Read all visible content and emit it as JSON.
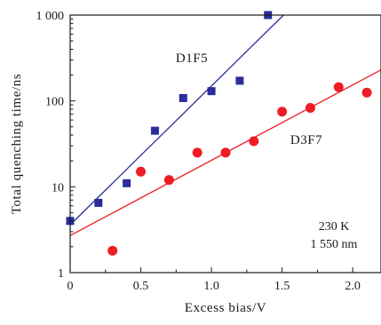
{
  "chart_data": {
    "type": "scatter",
    "title": "",
    "xlabel": "Excess bias/V",
    "ylabel": "Total quenching time/ns",
    "xlim": [
      0,
      2.2
    ],
    "ylim": [
      1,
      1000
    ],
    "y_scale": "log",
    "x_ticks": [
      0,
      0.5,
      1.0,
      1.5,
      2.0
    ],
    "x_tick_labels": [
      "0",
      "0.5",
      "1.0",
      "1.5",
      "2.0"
    ],
    "y_ticks": [
      1,
      10,
      100,
      1000
    ],
    "y_tick_labels": [
      "1",
      "10",
      "100",
      "1 000"
    ],
    "grid": false,
    "legend": "none",
    "series": [
      {
        "name": "D1F5",
        "marker": "square",
        "color": "#2b2d9b",
        "points": [
          {
            "x": 0.0,
            "y": 4.0
          },
          {
            "x": 0.2,
            "y": 6.5
          },
          {
            "x": 0.4,
            "y": 11
          },
          {
            "x": 0.6,
            "y": 45
          },
          {
            "x": 0.8,
            "y": 108
          },
          {
            "x": 1.0,
            "y": 130
          },
          {
            "x": 1.2,
            "y": 172
          },
          {
            "x": 1.4,
            "y": 1000
          }
        ],
        "fit": {
          "x1": 0.0,
          "y1": 3.6,
          "x2": 1.51,
          "y2": 1000,
          "color": "#2b2d9b"
        }
      },
      {
        "name": "D3F7",
        "marker": "circle",
        "color": "#ee1c25",
        "points": [
          {
            "x": 0.3,
            "y": 1.8
          },
          {
            "x": 0.5,
            "y": 15
          },
          {
            "x": 0.7,
            "y": 12
          },
          {
            "x": 0.9,
            "y": 25
          },
          {
            "x": 1.1,
            "y": 25
          },
          {
            "x": 1.3,
            "y": 34
          },
          {
            "x": 1.5,
            "y": 75
          },
          {
            "x": 1.7,
            "y": 83
          },
          {
            "x": 1.9,
            "y": 145
          },
          {
            "x": 2.1,
            "y": 125
          }
        ],
        "fit": {
          "x1": 0.0,
          "y1": 2.7,
          "x2": 2.2,
          "y2": 230,
          "color": "#ee1c25"
        }
      }
    ],
    "annotations": [
      "230 K",
      "1 550 nm"
    ]
  }
}
